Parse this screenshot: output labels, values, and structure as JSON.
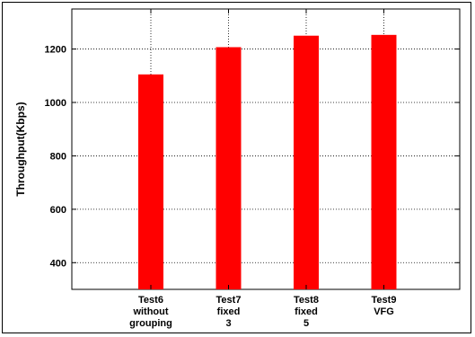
{
  "chart_data": {
    "type": "bar",
    "title": "",
    "xlabel": "",
    "ylabel": "Throughput(Kbps)",
    "ylim": [
      300,
      1350
    ],
    "yticks": [
      400,
      600,
      800,
      1000,
      1200
    ],
    "ytick_labels": [
      "400",
      "600",
      "800",
      "1000",
      "1200"
    ],
    "grid": true,
    "categories": [
      [
        "Test6",
        "without",
        "grouping"
      ],
      [
        "Test7",
        "fixed",
        "3"
      ],
      [
        "Test8",
        "fixed",
        "5"
      ],
      [
        "Test9",
        "VFG"
      ]
    ],
    "values": [
      1105,
      1207,
      1250,
      1253
    ],
    "bar_color": "#ff0000"
  }
}
